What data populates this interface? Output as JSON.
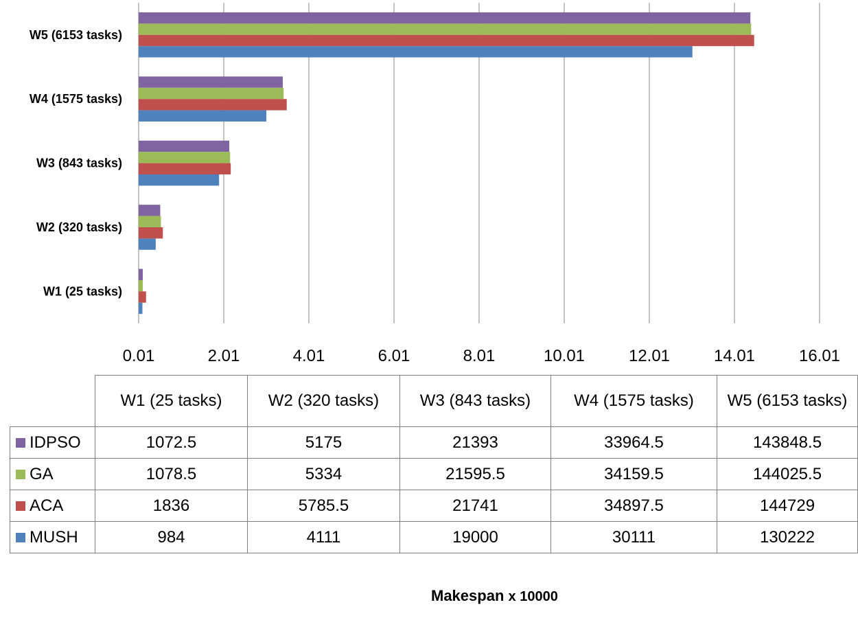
{
  "chart_data": {
    "type": "bar",
    "orientation": "horizontal",
    "title": "",
    "xlabel": "Makespan",
    "xlabel_unit": "x 10000",
    "scale": 10000,
    "xlim": [
      0.01,
      16.01
    ],
    "xticks": [
      "0.01",
      "2.01",
      "4.01",
      "6.01",
      "8.01",
      "10.01",
      "12.01",
      "14.01",
      "16.01"
    ],
    "categories": [
      "W1 (25 tasks)",
      "W2 (320 tasks)",
      "W3  (843 tasks)",
      "W4  (1575 tasks)",
      "W5  (6153 tasks)"
    ],
    "series": [
      {
        "name": "IDPSO",
        "color": "#8064a2",
        "values": [
          1072.5,
          5175,
          21393,
          33964.5,
          143848.5
        ]
      },
      {
        "name": "GA",
        "color": "#9bbb59",
        "values": [
          1078.5,
          5334,
          21595.5,
          34159.5,
          144025.5
        ]
      },
      {
        "name": "ACA",
        "color": "#c0504d",
        "values": [
          1836,
          5785.5,
          21741,
          34897.5,
          144729
        ]
      },
      {
        "name": "MUSH",
        "color": "#4f81bd",
        "values": [
          984,
          4111,
          19000,
          30111,
          130222
        ]
      }
    ],
    "grid": true,
    "legend": "data-table-below"
  },
  "table": {
    "display_values": [
      [
        "1072.5",
        "5175",
        "21393",
        "33964.5",
        "143848.5"
      ],
      [
        "1078.5",
        "5334",
        "21595.5",
        "34159.5",
        "144025.5"
      ],
      [
        "1836",
        "5785.5",
        "21741",
        "34897.5",
        "144729"
      ],
      [
        "984",
        "4111",
        "19000",
        "30111",
        "130222"
      ]
    ]
  }
}
